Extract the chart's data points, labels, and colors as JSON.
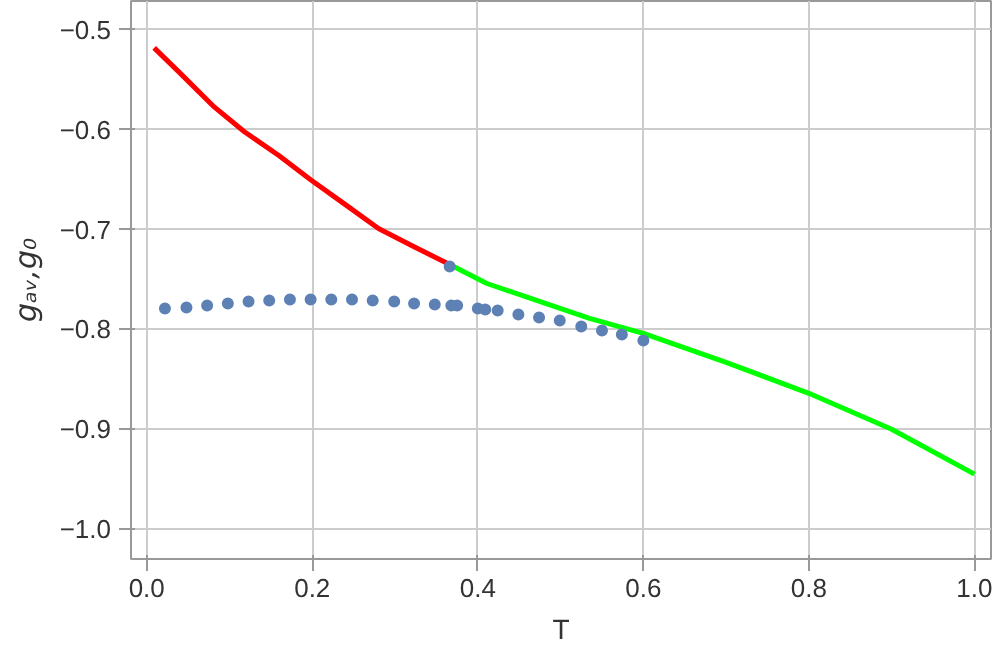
{
  "chart_data": {
    "type": "line",
    "xlabel": "T",
    "ylabel": "gₐᵥ,g₀",
    "xlim": [
      -0.019,
      1.02
    ],
    "ylim": [
      -1.03,
      -0.471
    ],
    "xticks": [
      {
        "value": 0,
        "label": "0.0"
      },
      0.2,
      0.4,
      0.6,
      0.8,
      {
        "value": 1,
        "label": "1.0"
      }
    ],
    "yticks": [
      {
        "value": -1,
        "label": "−1.0"
      },
      {
        "value": -0.9,
        "label": "−0.9"
      },
      {
        "value": -0.8,
        "label": "−0.8"
      },
      {
        "value": -0.7,
        "label": "−0.7"
      },
      {
        "value": -0.6,
        "label": "−0.6"
      },
      {
        "value": -0.5,
        "label": "−0.5"
      }
    ],
    "grid": true,
    "series": [
      {
        "color": "#ff0000",
        "x": [
          0.009,
          0.04,
          0.08,
          0.118,
          0.16,
          0.198,
          0.24,
          0.28,
          0.32,
          0.366
        ],
        "values": [
          -0.518,
          -0.543,
          -0.576,
          -0.602,
          -0.626,
          -0.65,
          -0.675,
          -0.699,
          -0.716,
          -0.735
        ]
      },
      {
        "color": "#00ff00",
        "x": [
          0.366,
          0.411,
          0.535,
          0.6,
          0.7,
          0.8,
          0.9,
          1.0
        ],
        "values": [
          -0.735,
          -0.754,
          -0.789,
          -0.804,
          -0.833,
          -0.864,
          -0.9,
          -0.945
        ]
      },
      {
        "type": "scatter",
        "color": "#5e81b5",
        "x": [
          0.022,
          0.048,
          0.073,
          0.098,
          0.123,
          0.148,
          0.173,
          0.198,
          0.223,
          0.248,
          0.273,
          0.299,
          0.323,
          0.348,
          0.366,
          0.368,
          0.375,
          0.4,
          0.409,
          0.424,
          0.449,
          0.474,
          0.499,
          0.525,
          0.55,
          0.574,
          0.6
        ],
        "values": [
          -0.779,
          -0.778,
          -0.776,
          -0.774,
          -0.772,
          -0.771,
          -0.77,
          -0.77,
          -0.77,
          -0.77,
          -0.771,
          -0.772,
          -0.774,
          -0.775,
          -0.737,
          -0.776,
          -0.776,
          -0.779,
          -0.78,
          -0.781,
          -0.785,
          -0.788,
          -0.791,
          -0.797,
          -0.801,
          -0.805,
          -0.811
        ]
      }
    ]
  }
}
